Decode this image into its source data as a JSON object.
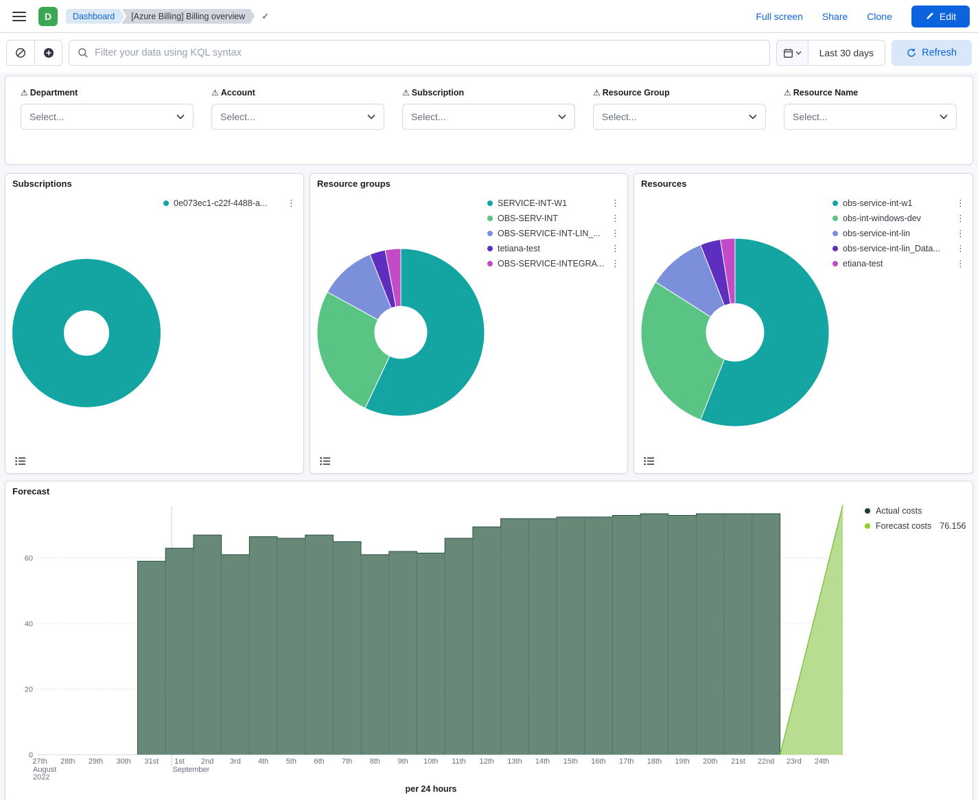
{
  "colors": {
    "primary": "#0b64dd",
    "link": "#0b64dd",
    "refresh_bg": "#d9e8f8",
    "crumb_active_bg": "#dbe9f7",
    "crumb_current_bg": "#d3d6de",
    "avatar_bg": "#3ba755"
  },
  "icons": {
    "warning": "⚠",
    "menu": "⋮",
    "check": "✓"
  },
  "header": {
    "avatar_initial": "D",
    "breadcrumb_root": "Dashboard",
    "breadcrumb_current": "[Azure Billing] Billing overview",
    "action_fullscreen": "Full screen",
    "action_share": "Share",
    "action_clone": "Clone",
    "edit_button": "Edit"
  },
  "query_bar": {
    "search_placeholder": "Filter your data using KQL syntax",
    "time_range": "Last 30 days",
    "refresh_button": "Refresh"
  },
  "filters": [
    {
      "label": "Department",
      "value": "Select..."
    },
    {
      "label": "Account",
      "value": "Select..."
    },
    {
      "label": "Subscription",
      "value": "Select..."
    },
    {
      "label": "Resource Group",
      "value": "Select..."
    },
    {
      "label": "Resource Name",
      "value": "Select..."
    }
  ],
  "chart_data": [
    {
      "type": "pie",
      "title": "Subscriptions",
      "series": [
        {
          "label": "0e073ec1-c22f-4488-a...",
          "percent": 100,
          "color": "#14a5a3"
        }
      ]
    },
    {
      "type": "pie",
      "title": "Resource groups",
      "series": [
        {
          "label": "SERVICE-INT-W1",
          "percent": 57,
          "color": "#14a5a3"
        },
        {
          "label": "OBS-SERV-INT",
          "percent": 26,
          "color": "#59c483"
        },
        {
          "label": "OBS-SERVICE-INT-LIN_...",
          "percent": 11,
          "color": "#7b8fdb"
        },
        {
          "label": "tetiana-test",
          "percent": 3,
          "color": "#5e2ebf"
        },
        {
          "label": "OBS-SERVICE-INTEGRA...",
          "percent": 3,
          "color": "#c44bc8"
        }
      ]
    },
    {
      "type": "pie",
      "title": "Resources",
      "series": [
        {
          "label": "obs-service-int-w1",
          "percent": 56,
          "color": "#14a5a3"
        },
        {
          "label": "obs-int-windows-dev",
          "percent": 28,
          "color": "#59c483"
        },
        {
          "label": "obs-service-int-lin",
          "percent": 10,
          "color": "#7b8fdb"
        },
        {
          "label": "obs-service-int-lin_Data...",
          "percent": 3.5,
          "color": "#5e2ebf"
        },
        {
          "label": "etiana-test",
          "percent": 2.5,
          "color": "#c44bc8"
        }
      ]
    },
    {
      "type": "area",
      "title": "Forecast",
      "xlabel": "per 24 hours",
      "ylim": [
        0,
        76.2
      ],
      "yticks": [
        0,
        20,
        40,
        60
      ],
      "x": [
        "27th",
        "28th",
        "29th",
        "30th",
        "31st",
        "1st",
        "2nd",
        "3rd",
        "4th",
        "5th",
        "6th",
        "7th",
        "8th",
        "9th",
        "10th",
        "11th",
        "12th",
        "13th",
        "14th",
        "15th",
        "16th",
        "17th",
        "18th",
        "19th",
        "20th",
        "21st",
        "22nd",
        "23rd",
        "24th"
      ],
      "x_secondary": [
        {
          "index": 0,
          "lines": [
            "August",
            "2022"
          ]
        },
        {
          "index": 5,
          "lines": [
            "September"
          ]
        }
      ],
      "series": [
        {
          "name": "Actual costs",
          "style": "step",
          "dot": "#1d4038",
          "fill": "#5b7f6c",
          "stroke": "#294f42",
          "values": [
            null,
            null,
            null,
            null,
            59,
            63,
            67,
            61,
            66.5,
            66,
            67,
            65,
            61,
            62,
            61.5,
            66,
            69.5,
            72,
            72,
            72.5,
            72.5,
            73,
            73.5,
            73,
            73.5,
            73.5,
            73.5,
            null,
            null
          ]
        },
        {
          "name": "Forecast costs",
          "style": "line",
          "dot": "#8fd22e",
          "fill": "#b9dd90",
          "stroke": "#82c445",
          "display_value": "76.156",
          "points": [
            {
              "x": 26.5,
              "value": 0
            },
            {
              "x": 28.75,
              "value": 76.156
            }
          ]
        }
      ]
    }
  ]
}
